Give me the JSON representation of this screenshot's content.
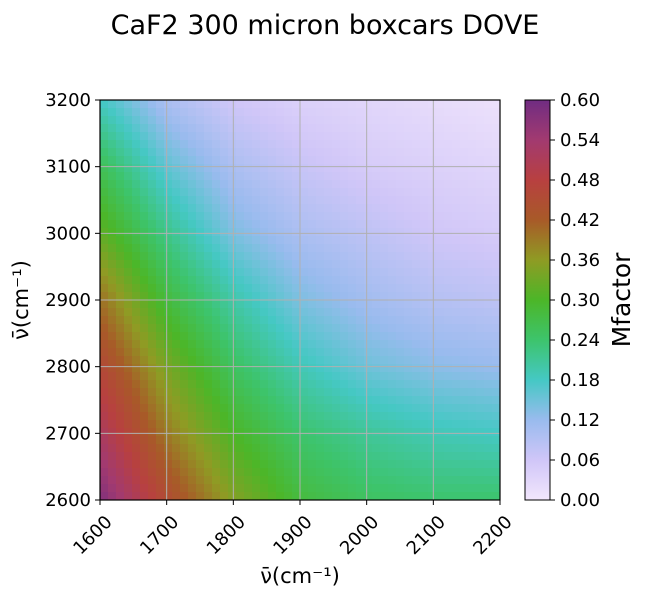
{
  "chart_data": {
    "type": "heatmap",
    "title": "CaF2 300 micron boxcars DOVE",
    "xlabel": "ν̄(cm⁻¹)",
    "ylabel": "ν̄(cm⁻¹)",
    "xlim": [
      1600,
      2200
    ],
    "ylim": [
      2600,
      3200
    ],
    "xticks": [
      1600,
      1700,
      1800,
      1900,
      2000,
      2100,
      2200
    ],
    "yticks": [
      2600,
      2700,
      2800,
      2900,
      3000,
      3100,
      3200
    ],
    "grid": true,
    "colorbar": {
      "label": "Mfactor",
      "range": [
        0.0,
        0.6
      ],
      "ticks": [
        "0.00",
        "0.06",
        "0.12",
        "0.18",
        "0.24",
        "0.30",
        "0.36",
        "0.42",
        "0.48",
        "0.54",
        "0.60"
      ],
      "colormap": [
        {
          "v": 0.0,
          "color": "#f2e6fc"
        },
        {
          "v": 0.06,
          "color": "#d0c6f8"
        },
        {
          "v": 0.12,
          "color": "#99bbee"
        },
        {
          "v": 0.18,
          "color": "#45c8c4"
        },
        {
          "v": 0.24,
          "color": "#3dc46c"
        },
        {
          "v": 0.3,
          "color": "#4cb628"
        },
        {
          "v": 0.36,
          "color": "#8f9b24"
        },
        {
          "v": 0.42,
          "color": "#a85a28"
        },
        {
          "v": 0.48,
          "color": "#b84040"
        },
        {
          "v": 0.54,
          "color": "#a23a70"
        },
        {
          "v": 0.6,
          "color": "#702c82"
        }
      ]
    },
    "values_sample": {
      "x": [
        1600,
        1700,
        1800,
        1900,
        2000,
        2100,
        2200
      ],
      "y": [
        3200,
        3100,
        3000,
        2900,
        2800,
        2700,
        2600
      ],
      "z": [
        [
          0.18,
          0.1,
          0.06,
          0.04,
          0.03,
          0.02,
          0.01
        ],
        [
          0.26,
          0.16,
          0.1,
          0.07,
          0.05,
          0.04,
          0.03
        ],
        [
          0.32,
          0.22,
          0.14,
          0.1,
          0.08,
          0.06,
          0.05
        ],
        [
          0.4,
          0.28,
          0.2,
          0.14,
          0.11,
          0.09,
          0.08
        ],
        [
          0.46,
          0.34,
          0.25,
          0.19,
          0.15,
          0.13,
          0.12
        ],
        [
          0.52,
          0.39,
          0.3,
          0.24,
          0.21,
          0.19,
          0.18
        ],
        [
          0.58,
          0.45,
          0.35,
          0.28,
          0.25,
          0.24,
          0.24
        ]
      ]
    }
  }
}
